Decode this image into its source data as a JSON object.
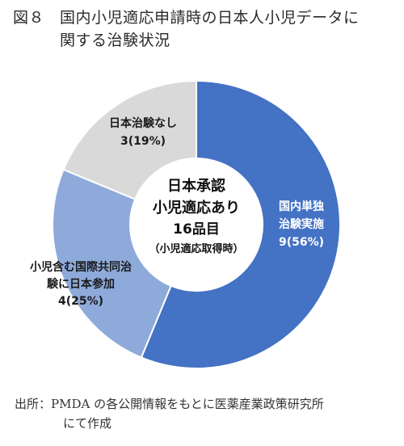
{
  "title": {
    "fig_no": "図８",
    "line1": "国内小児適応申請時の日本人小児データに",
    "line2": "関する治験状況"
  },
  "center_label": {
    "line1": "日本承認",
    "line2": "小児適応あり",
    "line3": "16品目",
    "line4": "（小児適応取得時）"
  },
  "source": {
    "line1": "出所：PMDA の各公開情報をもとに医薬産業政策研究所",
    "line2": "にて作成"
  },
  "chart_data": {
    "type": "pie",
    "donut": true,
    "total": 16,
    "slices": [
      {
        "label_lines": [
          "国内単独",
          "治験実施"
        ],
        "value": 9,
        "value_label": "9(56%)",
        "percent": 56,
        "color": "#4472c4",
        "label_color": "#ffffff"
      },
      {
        "label_lines": [
          "小児含む国際共同治",
          "験に日本参加"
        ],
        "value": 4,
        "value_label": "4(25%)",
        "percent": 25,
        "color": "#8eaadb",
        "label_color": "#1a1a1a"
      },
      {
        "label_lines": [
          "日本治験なし"
        ],
        "value": 3,
        "value_label": "3(19%)",
        "percent": 19,
        "color": "#d9d9d9",
        "label_color": "#1a1a1a"
      }
    ]
  }
}
